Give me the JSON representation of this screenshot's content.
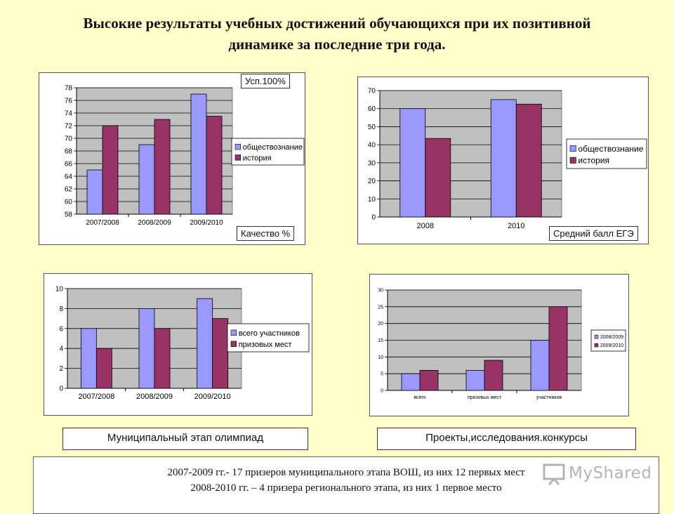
{
  "page": {
    "title_line1": "Высокие результаты учебных достижений обучающихся при их позитивной",
    "title_line2": "динамике за последние три года."
  },
  "colors": {
    "series_a": "#9999ff",
    "series_b": "#993366",
    "plot_bg": "#c0c0c0",
    "background": "#ffffcc"
  },
  "charts": {
    "quality": {
      "tag_top": "Усп.100%",
      "tag_bottom": "Качество %"
    },
    "ege": {
      "tag_bottom": "Средний балл ЕГЭ"
    }
  },
  "captions": {
    "olympiad": "Муниципальный этап олимпиад",
    "projects": "Проекты,исследования.конкурсы"
  },
  "bottom": {
    "line1": "2007-2009 гг.- 17 призеров муниципального этапа ВОШ, из них 12 первых мест",
    "line2": "2008-2010 гг. – 4 призера регионального этапа, из них 1 первое место"
  },
  "watermark": {
    "text": "MyShared"
  },
  "chart_data": [
    {
      "type": "bar",
      "categories": [
        "2007/2008",
        "2008/2009",
        "2009/2010"
      ],
      "series": [
        {
          "name": "обществознание",
          "values": [
            65,
            69,
            77
          ]
        },
        {
          "name": "история",
          "values": [
            72,
            73,
            73.5
          ]
        }
      ],
      "ylim": [
        58,
        78
      ],
      "yticks": [
        "58",
        "60",
        "62",
        "64",
        "66",
        "68",
        "70",
        "72",
        "74",
        "76",
        "78"
      ],
      "legend": "right"
    },
    {
      "type": "bar",
      "categories": [
        "2008",
        "2010"
      ],
      "series": [
        {
          "name": "обществознание",
          "values": [
            60,
            65
          ]
        },
        {
          "name": "история",
          "values": [
            43.5,
            62.5
          ]
        }
      ],
      "ylim": [
        0,
        70
      ],
      "yticks": [
        "0",
        "10",
        "20",
        "30",
        "40",
        "50",
        "60",
        "70"
      ],
      "legend": "right"
    },
    {
      "type": "bar",
      "categories": [
        "2007/2008",
        "2008/2009",
        "2009/2010"
      ],
      "series": [
        {
          "name": "всего участников",
          "values": [
            6,
            8,
            9
          ]
        },
        {
          "name": "призовых мест",
          "values": [
            4,
            6,
            7
          ]
        }
      ],
      "ylim": [
        0,
        10
      ],
      "yticks": [
        "0",
        "2",
        "4",
        "6",
        "8",
        "10"
      ],
      "legend": "right"
    },
    {
      "type": "bar",
      "categories": [
        "всего",
        "призовых мест",
        "участников"
      ],
      "series": [
        {
          "name": "2008/2009",
          "values": [
            5,
            6,
            15
          ]
        },
        {
          "name": "2009/2010",
          "values": [
            6,
            9,
            25
          ]
        }
      ],
      "ylim": [
        0,
        30
      ],
      "yticks": [
        "0",
        "5",
        "10",
        "15",
        "20",
        "25",
        "30"
      ],
      "legend": "right"
    }
  ]
}
